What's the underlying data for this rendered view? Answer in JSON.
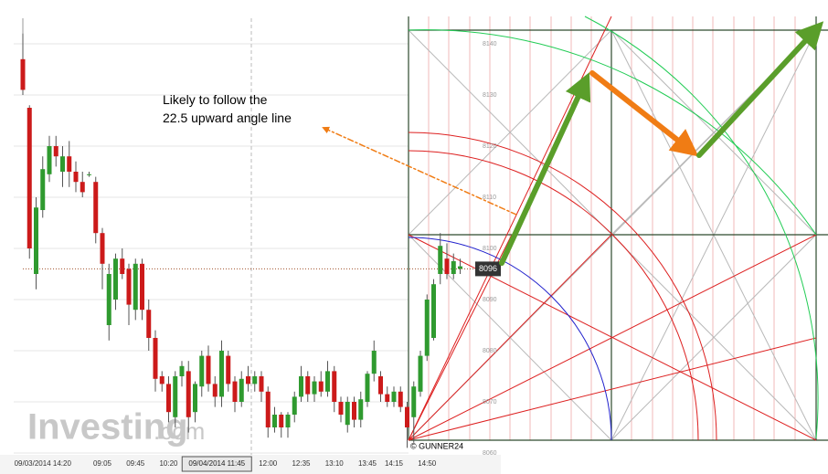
{
  "chart_data": {
    "type": "candlestick",
    "annotation": "Likely to follow the 22.5 upward angle line",
    "copyright": "© GUNNER24",
    "watermark": "Investing",
    "watermark_suffix": ".com",
    "crosshair_label": "09/04/2014 11:45",
    "last_price": 8096,
    "up_color": "#2f9a2f",
    "down_color": "#cc1a1a",
    "ylim": [
      8056,
      8148
    ],
    "yticks": [
      8060,
      8070,
      8080,
      8090,
      8100,
      8110,
      8120,
      8130,
      8140
    ],
    "grid": true,
    "categories": [
      null,
      null,
      null,
      "09/03/2014 14:20",
      null,
      null,
      null,
      null,
      null,
      null,
      null,
      null,
      "09:05",
      null,
      null,
      null,
      null,
      "09:45",
      null,
      null,
      null,
      null,
      "10:20",
      null,
      null,
      null,
      null,
      null,
      null,
      null,
      null,
      null,
      null,
      null,
      null,
      null,
      null,
      "12:00",
      null,
      null,
      null,
      null,
      "12:35",
      null,
      null,
      null,
      null,
      "13:10",
      null,
      null,
      null,
      null,
      "13:45",
      null,
      null,
      null,
      "14:15",
      null,
      null,
      null,
      null,
      "14:50",
      null,
      null,
      null,
      null,
      null
    ],
    "open": [
      8137,
      8127.5,
      8095,
      8107.5,
      8114.5,
      8120,
      8115,
      8118,
      8115,
      8113,
      8114.5,
      8113,
      8103,
      8085,
      8090,
      8098,
      8096,
      8088,
      8097,
      8088,
      8082.5,
      8075,
      8073.5,
      8067,
      8075,
      8076,
      8068,
      8073,
      8079,
      8073.5,
      8071,
      8079,
      8074,
      8070,
      8075,
      8073.5,
      8075,
      8072,
      8065,
      8067.5,
      8065,
      8067.5,
      8071,
      8075,
      8071.5,
      8074,
      8072,
      8076,
      8070,
      8065.5,
      8070,
      8066.5,
      8070,
      8075.5,
      8075,
      8071.5,
      8070,
      8072,
      8069,
      8067,
      8072,
      8079,
      8082.5,
      8095,
      8098,
      8095,
      8096
    ],
    "high": [
      8142,
      8128,
      8110,
      8118,
      8122,
      8122,
      8120,
      8121,
      8117,
      8115,
      8115,
      8114,
      8104,
      8097,
      8099,
      8100,
      8097,
      8098,
      8098,
      8090,
      8084,
      8076,
      8075,
      8076,
      8078,
      8078,
      8074,
      8080,
      8081,
      8075,
      8082,
      8080,
      8075,
      8076,
      8077,
      8076,
      8076,
      8073,
      8069,
      8068,
      8068,
      8072,
      8077,
      8076,
      8075,
      8076,
      8078,
      8077,
      8071,
      8071,
      8071,
      8072,
      8076,
      8082,
      8076,
      8073,
      8073,
      8073,
      8070,
      8074,
      8080,
      8091,
      8094,
      8103,
      8101,
      8099,
      8098
    ],
    "low": [
      8130,
      8098,
      8092,
      8106,
      8113,
      8116,
      8112,
      8112,
      8111,
      8110,
      8114,
      8101,
      8092,
      8082,
      8088,
      8094,
      8085,
      8086,
      8086,
      8080,
      8072,
      8072,
      8066,
      8065,
      8073,
      8064,
      8066,
      8071,
      8072,
      8069,
      8069,
      8072,
      8068,
      8069,
      8072,
      8072,
      8070,
      8063,
      8064,
      8063,
      8063,
      8066,
      8070,
      8070,
      8070,
      8071,
      8071,
      8068,
      8066,
      8064,
      8065,
      8065,
      8069,
      8074,
      8070,
      8069,
      8069,
      8068,
      8061,
      8062,
      8071,
      8078,
      8082,
      8093,
      8094,
      8094,
      8095
    ],
    "close": [
      8131,
      8100,
      8108,
      8115.5,
      8120,
      8118,
      8118,
      8115,
      8113,
      8111,
      8114.5,
      8103,
      8097,
      8095,
      8098,
      8095,
      8089,
      8097,
      8088,
      8082.5,
      8074.5,
      8073.5,
      8068,
      8075,
      8077,
      8067,
      8073.5,
      8079,
      8073.5,
      8071,
      8080,
      8073.5,
      8070,
      8074.5,
      8073.5,
      8075,
      8072,
      8065,
      8067.5,
      8065,
      8067.5,
      8071,
      8075,
      8071.5,
      8074,
      8072,
      8076,
      8070,
      8067.5,
      8070,
      8066.5,
      8070.5,
      8075.5,
      8080,
      8071.5,
      8070,
      8072,
      8069,
      8065,
      8073,
      8079,
      8090,
      8093,
      8100.5,
      8095,
      8097.5,
      8096.5
    ]
  }
}
